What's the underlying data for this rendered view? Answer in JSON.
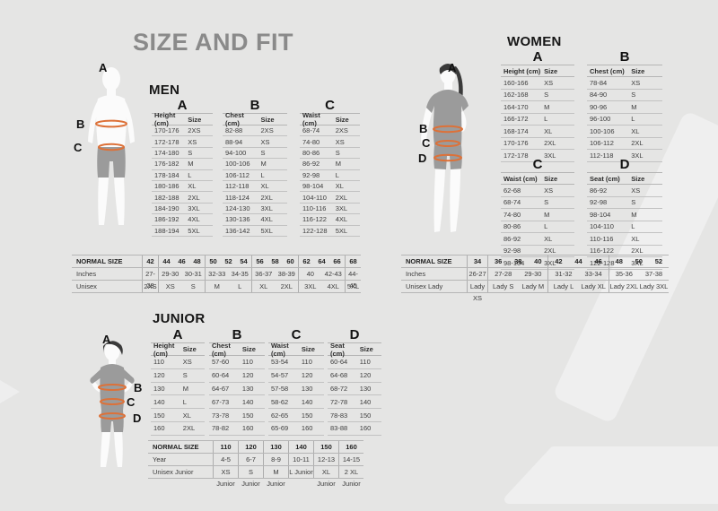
{
  "page": {
    "title": "SIZE AND FIT"
  },
  "colors": {
    "background": "#e5e5e4",
    "accent_orange": "#dd7138",
    "title_gray": "#8a8a8a",
    "text_dark": "#2b2b2b",
    "silhouette_skin": "#fbfbfb",
    "silhouette_cloth": "#9b9b9b",
    "silhouette_hair": "#3a3a3a",
    "decor_shape": "#efefef",
    "line_gray": "#b5b5b5"
  },
  "sections": {
    "men": {
      "title": "MEN",
      "figure_labels": {
        "a": "A",
        "b": "B",
        "c": "C"
      },
      "tables": [
        {
          "letter": "A",
          "headers": [
            "Height (cm)",
            "Size"
          ],
          "rows": [
            [
              "170-176",
              "2XS"
            ],
            [
              "172-178",
              "XS"
            ],
            [
              "174-180",
              "S"
            ],
            [
              "176-182",
              "M"
            ],
            [
              "178-184",
              "L"
            ],
            [
              "180-186",
              "XL"
            ],
            [
              "182-188",
              "2XL"
            ],
            [
              "184-190",
              "3XL"
            ],
            [
              "186-192",
              "4XL"
            ],
            [
              "188-194",
              "5XL"
            ]
          ]
        },
        {
          "letter": "B",
          "headers": [
            "Chest (cm)",
            "Size"
          ],
          "rows": [
            [
              "82-88",
              "2XS"
            ],
            [
              "88-94",
              "XS"
            ],
            [
              "94-100",
              "S"
            ],
            [
              "100-106",
              "M"
            ],
            [
              "106-112",
              "L"
            ],
            [
              "112-118",
              "XL"
            ],
            [
              "118-124",
              "2XL"
            ],
            [
              "124-130",
              "3XL"
            ],
            [
              "130-136",
              "4XL"
            ],
            [
              "136-142",
              "5XL"
            ]
          ]
        },
        {
          "letter": "C",
          "headers": [
            "Waist (cm)",
            "Size"
          ],
          "rows": [
            [
              "68-74",
              "2XS"
            ],
            [
              "74-80",
              "XS"
            ],
            [
              "80-86",
              "S"
            ],
            [
              "86-92",
              "M"
            ],
            [
              "92-98",
              "L"
            ],
            [
              "98-104",
              "XL"
            ],
            [
              "104-110",
              "2XL"
            ],
            [
              "110-116",
              "3XL"
            ],
            [
              "116-122",
              "4XL"
            ],
            [
              "122-128",
              "5XL"
            ]
          ]
        }
      ],
      "summary": {
        "row_labels": [
          "NORMAL SIZE",
          "Inches",
          "Unisex"
        ],
        "groups": [
          {
            "sizes": [
              "42"
            ],
            "row2": [
              "27-28"
            ],
            "row3": [
              "2XS"
            ]
          },
          {
            "sizes": [
              "44",
              "46",
              "48"
            ],
            "row2": [
              "29-30",
              "30-31"
            ],
            "row3": [
              "XS",
              "S"
            ]
          },
          {
            "sizes": [
              "50",
              "52",
              "54"
            ],
            "row2": [
              "32-33",
              "34-35"
            ],
            "row3": [
              "M",
              "L"
            ]
          },
          {
            "sizes": [
              "56",
              "58",
              "60"
            ],
            "row2": [
              "36-37",
              "38-39"
            ],
            "row3": [
              "XL",
              "2XL"
            ]
          },
          {
            "sizes": [
              "62",
              "64",
              "66"
            ],
            "row2": [
              "40",
              "42-43"
            ],
            "row3": [
              "3XL",
              "4XL"
            ]
          },
          {
            "sizes": [
              "68"
            ],
            "row2": [
              "44-45"
            ],
            "row3": [
              "5XL"
            ]
          }
        ]
      }
    },
    "women": {
      "title": "WOMEN",
      "figure_labels": {
        "a": "A",
        "b": "B",
        "c": "C",
        "d": "D"
      },
      "tables": [
        {
          "letter": "A",
          "headers": [
            "Height (cm)",
            "Size"
          ],
          "rows": [
            [
              "160-166",
              "XS"
            ],
            [
              "162-168",
              "S"
            ],
            [
              "164-170",
              "M"
            ],
            [
              "166-172",
              "L"
            ],
            [
              "168-174",
              "XL"
            ],
            [
              "170-176",
              "2XL"
            ],
            [
              "172-178",
              "3XL"
            ]
          ]
        },
        {
          "letter": "B",
          "headers": [
            "Chest (cm)",
            "Size"
          ],
          "rows": [
            [
              "78-84",
              "XS"
            ],
            [
              "84-90",
              "S"
            ],
            [
              "90-96",
              "M"
            ],
            [
              "96-100",
              "L"
            ],
            [
              "100-106",
              "XL"
            ],
            [
              "106-112",
              "2XL"
            ],
            [
              "112-118",
              "3XL"
            ]
          ]
        },
        {
          "letter": "C",
          "headers": [
            "Waist (cm)",
            "Size"
          ],
          "rows": [
            [
              "62-68",
              "XS"
            ],
            [
              "68-74",
              "S"
            ],
            [
              "74-80",
              "M"
            ],
            [
              "80-86",
              "L"
            ],
            [
              "86-92",
              "XL"
            ],
            [
              "92-98",
              "2XL"
            ],
            [
              "98-104",
              "3XL"
            ]
          ]
        },
        {
          "letter": "D",
          "headers": [
            "Seat (cm)",
            "Size"
          ],
          "rows": [
            [
              "86-92",
              "XS"
            ],
            [
              "92-98",
              "S"
            ],
            [
              "98-104",
              "M"
            ],
            [
              "104-110",
              "L"
            ],
            [
              "110-116",
              "XL"
            ],
            [
              "116-122",
              "2XL"
            ],
            [
              "122-128",
              "3XL"
            ]
          ]
        }
      ],
      "summary": {
        "row_labels": [
          "NORMAL SIZE",
          "Inches",
          "Unisex Lady"
        ],
        "groups": [
          {
            "sizes": [
              "34"
            ],
            "row2": [
              "26-27"
            ],
            "row3": [
              "Lady XS"
            ]
          },
          {
            "sizes": [
              "36",
              "38",
              "40"
            ],
            "row2": [
              "27-28",
              "29-30"
            ],
            "row3": [
              "Lady S",
              "Lady M"
            ]
          },
          {
            "sizes": [
              "42",
              "44",
              "46"
            ],
            "row2": [
              "31-32",
              "33-34"
            ],
            "row3": [
              "Lady L",
              "Lady XL"
            ]
          },
          {
            "sizes": [
              "48",
              "50",
              "52"
            ],
            "row2": [
              "35-36",
              "37-38"
            ],
            "row3": [
              "Lady 2XL",
              "Lady 3XL"
            ]
          }
        ]
      }
    },
    "junior": {
      "title": "JUNIOR",
      "figure_labels": {
        "a": "A",
        "b": "B",
        "c": "C",
        "d": "D"
      },
      "tables": [
        {
          "letter": "A",
          "headers": [
            "Height (cm)",
            "Size"
          ],
          "rows": [
            [
              "110",
              "XS"
            ],
            [
              "120",
              "S"
            ],
            [
              "130",
              "M"
            ],
            [
              "140",
              "L"
            ],
            [
              "150",
              "XL"
            ],
            [
              "160",
              "2XL"
            ]
          ]
        },
        {
          "letter": "B",
          "headers": [
            "Chest (cm)",
            "Size"
          ],
          "rows": [
            [
              "57-60",
              "110"
            ],
            [
              "60-64",
              "120"
            ],
            [
              "64-67",
              "130"
            ],
            [
              "67-73",
              "140"
            ],
            [
              "73-78",
              "150"
            ],
            [
              "78-82",
              "160"
            ]
          ]
        },
        {
          "letter": "C",
          "headers": [
            "Waist (cm)",
            "Size"
          ],
          "rows": [
            [
              "53-54",
              "110"
            ],
            [
              "54-57",
              "120"
            ],
            [
              "57-58",
              "130"
            ],
            [
              "58-62",
              "140"
            ],
            [
              "62-65",
              "150"
            ],
            [
              "65-69",
              "160"
            ]
          ]
        },
        {
          "letter": "D",
          "headers": [
            "Seat (cm)",
            "Size"
          ],
          "rows": [
            [
              "60-64",
              "110"
            ],
            [
              "64-68",
              "120"
            ],
            [
              "68-72",
              "130"
            ],
            [
              "72-78",
              "140"
            ],
            [
              "78-83",
              "150"
            ],
            [
              "83-88",
              "160"
            ]
          ]
        }
      ],
      "summary": {
        "row_labels": [
          "NORMAL SIZE",
          "Year",
          "Unisex Junior"
        ],
        "groups": [
          {
            "sizes": [
              "110"
            ],
            "row2": [
              "4-5"
            ],
            "row3": [
              "XS Junior"
            ]
          },
          {
            "sizes": [
              "120"
            ],
            "row2": [
              "6-7"
            ],
            "row3": [
              "S Junior"
            ]
          },
          {
            "sizes": [
              "130"
            ],
            "row2": [
              "8-9"
            ],
            "row3": [
              "M Junior"
            ]
          },
          {
            "sizes": [
              "140"
            ],
            "row2": [
              "10-11"
            ],
            "row3": [
              "L Junior"
            ]
          },
          {
            "sizes": [
              "150"
            ],
            "row2": [
              "12-13"
            ],
            "row3": [
              "XL Junior"
            ]
          },
          {
            "sizes": [
              "160"
            ],
            "row2": [
              "14-15"
            ],
            "row3": [
              "2 XL Junior"
            ]
          }
        ]
      }
    }
  }
}
